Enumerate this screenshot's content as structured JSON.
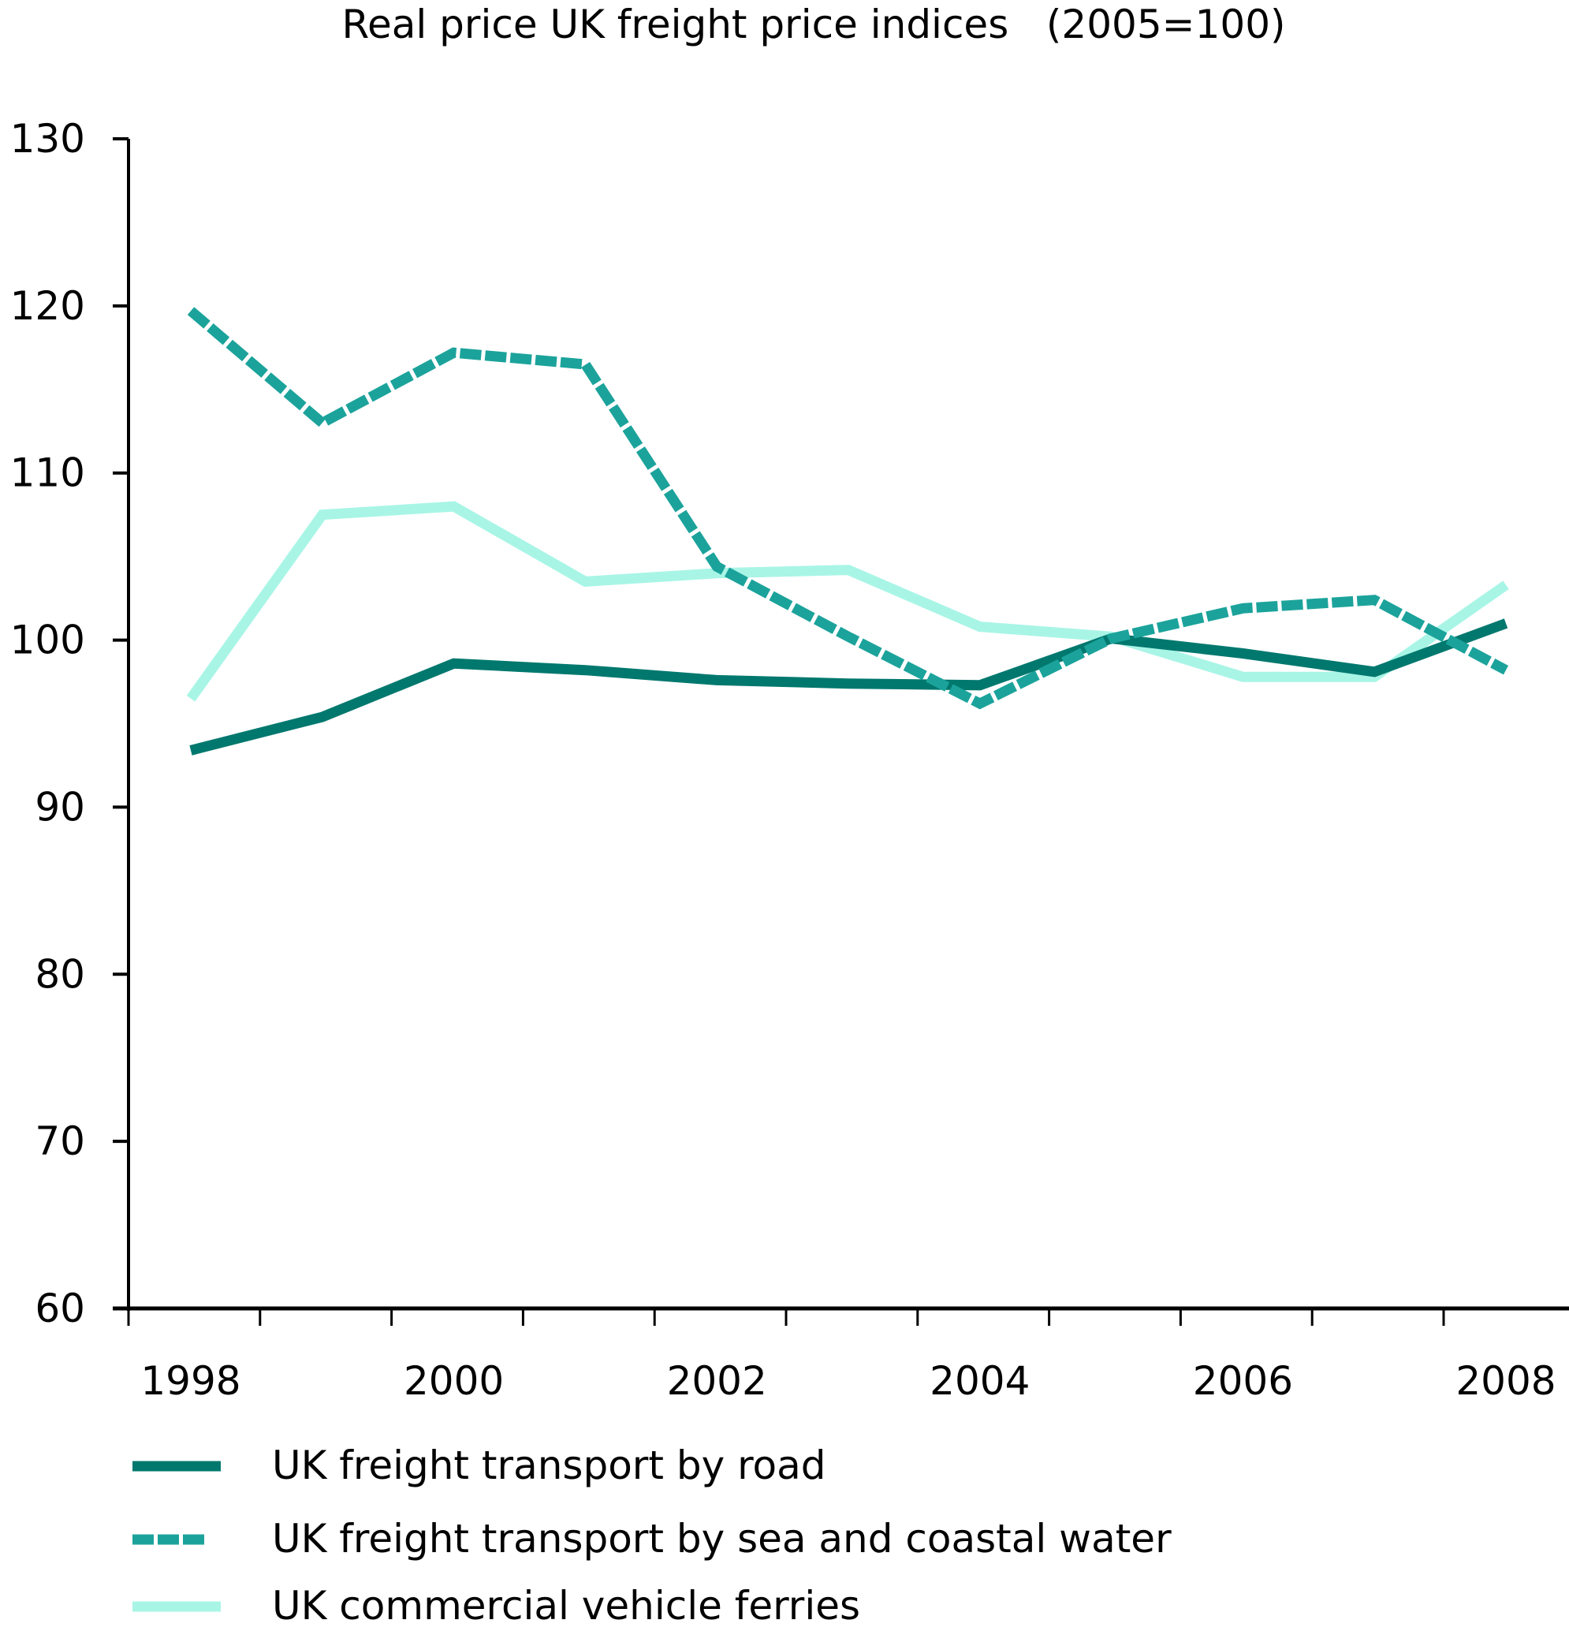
{
  "chart_data": {
    "type": "line",
    "title": "Real price UK freight price indices   (2005=100)",
    "xlabel": "",
    "ylabel": "",
    "x": [
      1998,
      1999,
      2000,
      2001,
      2002,
      2003,
      2004,
      2005,
      2006,
      2007,
      2008
    ],
    "x_tick_labels": [
      "1998",
      "2000",
      "2002",
      "2004",
      "2006",
      "2008"
    ],
    "y_tick_labels": [
      "60",
      "70",
      "80",
      "90",
      "100",
      "110",
      "120",
      "130"
    ],
    "ylim": [
      60,
      130
    ],
    "xlim": [
      1998,
      2008
    ],
    "grid": false,
    "legend_position": "bottom",
    "series": [
      {
        "name": "UK freight transport by road",
        "color": "#00786E",
        "style": "solid",
        "values": [
          93.4,
          95.4,
          98.6,
          98.2,
          97.6,
          97.4,
          97.3,
          100.1,
          99.2,
          98.1,
          101.0
        ]
      },
      {
        "name": "UK freight transport by sea and coastal water",
        "color": "#1BA39B",
        "style": "dashed",
        "values": [
          119.7,
          113.0,
          117.2,
          116.5,
          104.4,
          100.2,
          96.2,
          100.1,
          101.9,
          102.4,
          98.2
        ]
      },
      {
        "name": "UK commercial vehicle ferries",
        "color": "#A8F5E6",
        "style": "solid",
        "values": [
          96.5,
          107.5,
          108.0,
          103.5,
          104.0,
          104.2,
          100.8,
          100.2,
          97.8,
          97.8,
          103.3
        ]
      }
    ]
  }
}
